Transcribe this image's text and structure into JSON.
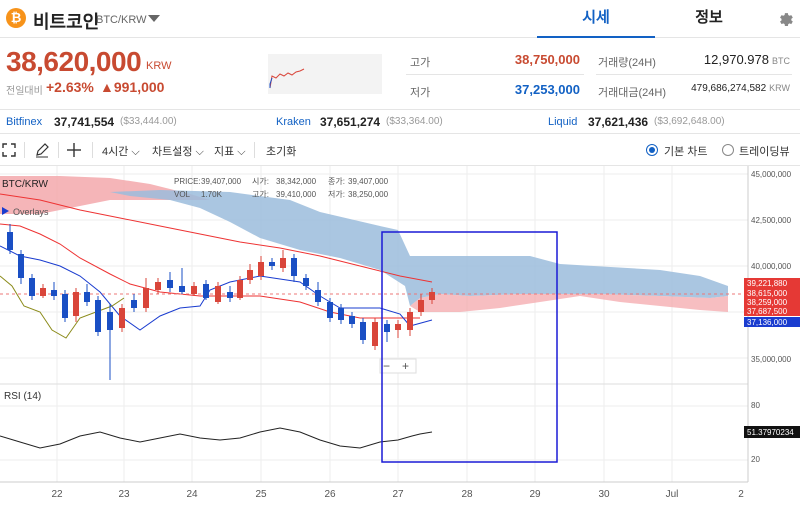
{
  "header": {
    "coin_symbol_glyph": "₿",
    "coin_name": "비트코인",
    "pair": "BTC/KRW",
    "tabs": [
      {
        "label": "시세",
        "active": true
      },
      {
        "label": "정보",
        "active": false
      }
    ]
  },
  "ticker": {
    "price": "38,620,000",
    "unit": "KRW",
    "change_label": "전일대비",
    "change_pct": "+2.63%",
    "change_val": "▲991,000",
    "high_label": "고가",
    "high": "38,750,000",
    "low_label": "저가",
    "low": "37,253,000",
    "volume_label": "거래량(24H)",
    "volume": "12,970.978",
    "volume_unit": "BTC",
    "amount_label": "거래대금(24H)",
    "amount": "479,686,274,582",
    "amount_unit": "KRW"
  },
  "exchanges": [
    {
      "name": "Bitfinex",
      "price": "37,741,554",
      "usd": "($33,444.00)"
    },
    {
      "name": "Kraken",
      "price": "37,651,274",
      "usd": "($33,364.00)"
    },
    {
      "name": "Liquid",
      "price": "37,621,436",
      "usd": "($3,692,648.00)"
    }
  ],
  "toolbar": {
    "interval": "4시간",
    "chart_settings": "차트설정",
    "indicators": "지표",
    "reset": "초기화",
    "basic_chart": "기본 차트",
    "trading_view": "트레이딩뷰"
  },
  "legend": {
    "pair": "BTC/KRW",
    "overlays": "Overlays",
    "price_label": "PRICE:",
    "price": "39,407,000",
    "open_label": "시가:",
    "open": "38,342,000",
    "close_label": "종가:",
    "close": "39,407,000",
    "vol_label": "VOL",
    "vol": "1.70K",
    "high_label": "고가:",
    "high": "39,410,000",
    "low_label": "저가:",
    "low": "38,250,000"
  },
  "price_axis": {
    "ticks": [
      "45,000,000",
      "42,500,000",
      "40,000,000",
      "35,000,000"
    ],
    "tags": [
      {
        "label": "39,221,880",
        "color": "#e53935"
      },
      {
        "label": "38,615,000",
        "color": "#e53935"
      },
      {
        "label": "38,259,000",
        "color": "#e53935"
      },
      {
        "label": "37,687,500",
        "color": "#e53935"
      },
      {
        "label": "37,136,000",
        "color": "#1a3ccf"
      }
    ]
  },
  "rsi": {
    "label": "RSI (14)",
    "ticks": [
      "80",
      "20"
    ],
    "value": "51.37970234"
  },
  "x_axis": {
    "ticks": [
      "22",
      "23",
      "24",
      "25",
      "26",
      "27",
      "28",
      "29",
      "30",
      "Jul",
      "2"
    ]
  },
  "zoom": {
    "minus": "−",
    "plus": "+"
  },
  "colors": {
    "up": "#d9453a",
    "down": "#1a4fc4",
    "cloud_bull": "#f3a3a6",
    "cloud_bear": "#9bbcdc",
    "accent": "#1261c4",
    "selection": "#1a1ad6"
  }
}
